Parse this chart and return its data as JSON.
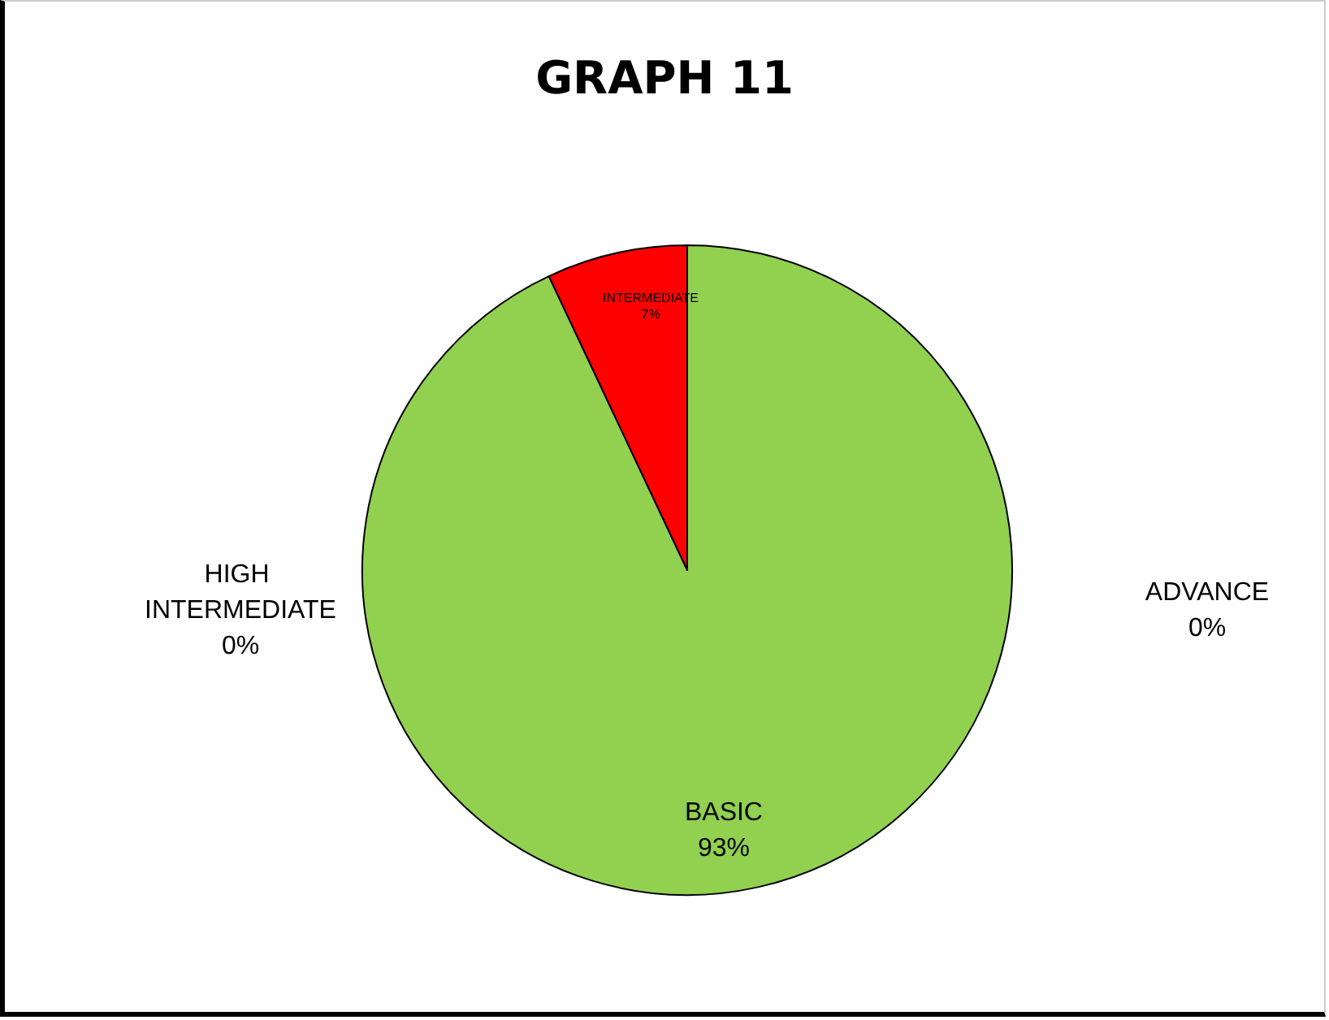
{
  "chart_data": {
    "type": "pie",
    "title": "GRAPH 11",
    "categories": [
      "BASIC",
      "INTERMEDIATE",
      "HIGH INTERMEDIATE",
      "ADVANCE"
    ],
    "values": [
      93,
      7,
      0,
      0
    ],
    "colors": [
      "#92d050",
      "#ff0000",
      "#92d050",
      "#92d050"
    ],
    "value_labels": [
      "93%",
      "7%",
      "0%",
      "0%"
    ],
    "legend": false
  }
}
